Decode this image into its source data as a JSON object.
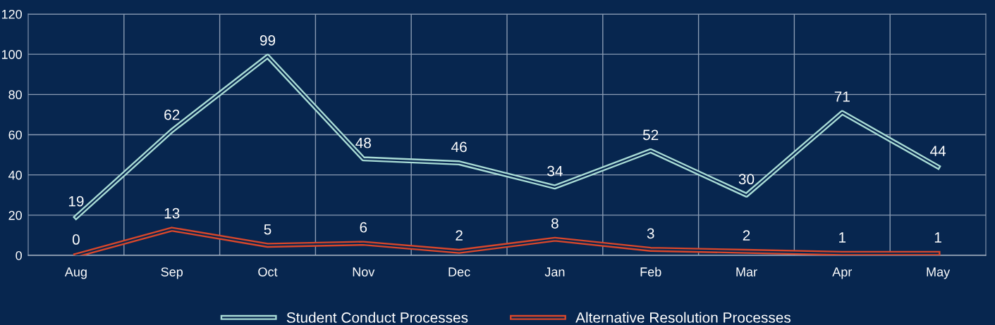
{
  "chart_data": {
    "type": "line",
    "categories": [
      "Aug",
      "Sep",
      "Oct",
      "Nov",
      "Dec",
      "Jan",
      "Feb",
      "Mar",
      "Apr",
      "May"
    ],
    "series": [
      {
        "name": "Student Conduct Processes",
        "color": "#a9dcd6",
        "values": [
          19,
          62,
          99,
          48,
          46,
          34,
          52,
          30,
          71,
          44
        ]
      },
      {
        "name": "Alternative Resolution Processes",
        "color": "#d9472b",
        "values": [
          0,
          13,
          5,
          6,
          2,
          8,
          3,
          2,
          1,
          1
        ]
      }
    ],
    "ylim": [
      0,
      120
    ],
    "yticks": [
      0,
      20,
      40,
      60,
      80,
      100,
      120
    ],
    "grid": true,
    "legend": "bottom",
    "data_labels": true,
    "marker": "none",
    "line_style": "solid"
  }
}
